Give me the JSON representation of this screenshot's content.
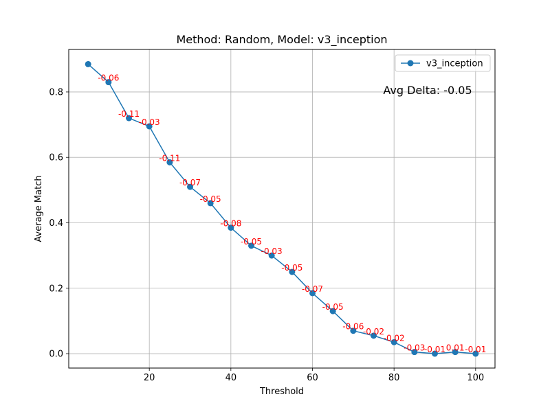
{
  "chart_data": {
    "type": "line",
    "title": "Method: Random, Model: v3_inception",
    "xlabel": "Threshold",
    "ylabel": "Average Match",
    "xlim": [
      0.25,
      104.75
    ],
    "ylim": [
      -0.044,
      0.93
    ],
    "xticks": [
      20,
      40,
      60,
      80,
      100
    ],
    "yticks": [
      0.0,
      0.2,
      0.4,
      0.6,
      0.8
    ],
    "xtick_labels": [
      "20",
      "40",
      "60",
      "80",
      "100"
    ],
    "ytick_labels": [
      "0.0",
      "0.2",
      "0.4",
      "0.6",
      "0.8"
    ],
    "grid": true,
    "legend_position": "top-right",
    "series": [
      {
        "name": "v3_inception",
        "color": "#1f77b4",
        "x": [
          5,
          10,
          15,
          20,
          25,
          30,
          35,
          40,
          45,
          50,
          55,
          60,
          65,
          70,
          75,
          80,
          85,
          90,
          95,
          100
        ],
        "y": [
          0.885,
          0.83,
          0.72,
          0.695,
          0.585,
          0.51,
          0.46,
          0.385,
          0.33,
          0.3,
          0.25,
          0.185,
          0.13,
          0.07,
          0.055,
          0.035,
          0.005,
          0.0,
          0.005,
          0.0
        ]
      }
    ],
    "annotations": {
      "color": "#ff0000",
      "x": [
        10,
        15,
        20,
        25,
        30,
        35,
        40,
        45,
        50,
        55,
        60,
        65,
        70,
        75,
        80,
        85,
        90,
        95,
        100
      ],
      "y": [
        0.83,
        0.72,
        0.695,
        0.585,
        0.51,
        0.46,
        0.385,
        0.33,
        0.3,
        0.25,
        0.185,
        0.13,
        0.07,
        0.055,
        0.035,
        0.005,
        0.0,
        0.005,
        0.0
      ],
      "labels": [
        "-0.06",
        "-0.11",
        "-0.03",
        "-0.11",
        "-0.07",
        "-0.05",
        "-0.08",
        "-0.05",
        "-0.03",
        "-0.05",
        "-0.07",
        "-0.05",
        "-0.06",
        "-0.02",
        "-0.02",
        "-0.03",
        "-0.01",
        "0.01",
        "-0.01"
      ]
    },
    "summary_text": "Avg Delta: -0.05"
  }
}
